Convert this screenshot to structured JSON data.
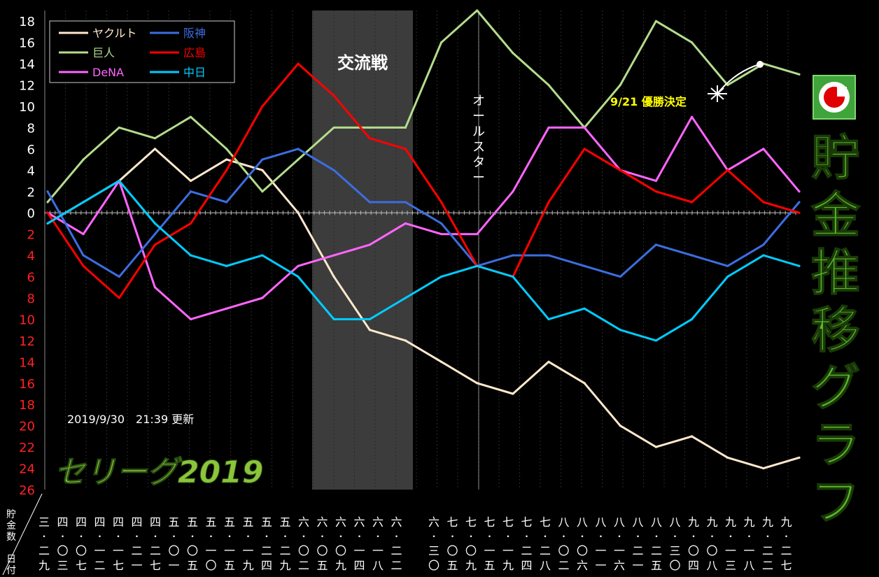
{
  "chart_data": {
    "type": "line",
    "title": "貯金推移グラフ",
    "badge": "セリーグ2019",
    "updated": "2019/9/30　21:39 更新",
    "axis_label": [
      "貯",
      "金",
      "数",
      "/",
      "日",
      "付"
    ],
    "ylim": [
      -26,
      19
    ],
    "yticks_pos": [
      "18",
      "16",
      "14",
      "12",
      "10",
      "8",
      "6",
      "4",
      "2",
      "0"
    ],
    "yticks_neg": [
      "2",
      "4",
      "6",
      "8",
      "10",
      "12",
      "14",
      "16",
      "18",
      "20",
      "22",
      "24",
      "26"
    ],
    "annotations": {
      "interleague": "交流戦",
      "allstar": [
        "オ",
        "ー",
        "ル",
        "ス",
        "タ",
        "ー"
      ],
      "clinch": "9/21 優勝決定"
    },
    "date_labels": [
      [
        "三",
        "二",
        "九"
      ],
      [
        "四",
        "〇",
        "三"
      ],
      [
        "四",
        "〇",
        "七"
      ],
      [
        "四",
        "一",
        "二"
      ],
      [
        "四",
        "一",
        "七"
      ],
      [
        "四",
        "二",
        "一"
      ],
      [
        "四",
        "二",
        "七"
      ],
      [
        "五",
        "〇",
        "一"
      ],
      [
        "五",
        "〇",
        "五"
      ],
      [
        "五",
        "一",
        "〇"
      ],
      [
        "五",
        "一",
        "五"
      ],
      [
        "五",
        "一",
        "九"
      ],
      [
        "五",
        "二",
        "四"
      ],
      [
        "五",
        "二",
        "九"
      ],
      [
        "六",
        "〇",
        "二"
      ],
      [
        "六",
        "〇",
        "五"
      ],
      [
        "六",
        "〇",
        "九"
      ],
      [
        "六",
        "一",
        "四"
      ],
      [
        "六",
        "一",
        "八"
      ],
      [
        "六",
        "二",
        "二"
      ],
      [
        "六",
        "三",
        "〇"
      ],
      [
        "七",
        "〇",
        "五"
      ],
      [
        "七",
        "〇",
        "九"
      ],
      [
        "七",
        "一",
        "五"
      ],
      [
        "七",
        "一",
        "九"
      ],
      [
        "七",
        "二",
        "四"
      ],
      [
        "七",
        "二",
        "八"
      ],
      [
        "八",
        "〇",
        "二"
      ],
      [
        "八",
        "〇",
        "六"
      ],
      [
        "八",
        "一",
        "一"
      ],
      [
        "八",
        "一",
        "六"
      ],
      [
        "八",
        "二",
        "一"
      ],
      [
        "八",
        "二",
        "五"
      ],
      [
        "八",
        "三",
        "〇"
      ],
      [
        "九",
        "〇",
        "四"
      ],
      [
        "九",
        "〇",
        "八"
      ],
      [
        "九",
        "一",
        "三"
      ],
      [
        "九",
        "一",
        "八"
      ],
      [
        "九",
        "二",
        "二"
      ],
      [
        "九",
        "二",
        "七"
      ]
    ],
    "series": [
      {
        "name": "ヤクルト",
        "color": "#ffe8cc",
        "values": [
          -1,
          1,
          3,
          6,
          3,
          5,
          4,
          0,
          -6,
          -11,
          -12,
          -14,
          -16,
          -17,
          -14,
          -16,
          -20,
          -22,
          -21,
          -23,
          -24,
          -23
        ]
      },
      {
        "name": "巨人",
        "color": "#b4dc8c",
        "values": [
          1,
          5,
          8,
          7,
          9,
          6,
          2,
          5,
          8,
          8,
          8,
          16,
          19,
          15,
          12,
          8,
          12,
          18,
          16,
          12,
          14,
          13
        ]
      },
      {
        "name": "DeNA",
        "color": "#ff66ff",
        "values": [
          0,
          -2,
          3,
          -7,
          -10,
          -9,
          -8,
          -5,
          -4,
          -3,
          -1,
          -2,
          -2,
          2,
          8,
          8,
          4,
          3,
          9,
          4,
          6,
          2
        ]
      },
      {
        "name": "阪神",
        "color": "#3c6ee0",
        "values": [
          2,
          -4,
          -6,
          -2,
          2,
          1,
          5,
          6,
          4,
          1,
          1,
          -1,
          -5,
          -4,
          -4,
          -5,
          -6,
          -3,
          -4,
          -5,
          -3,
          1
        ]
      },
      {
        "name": "広島",
        "color": "#ff0000",
        "values": [
          0,
          -5,
          -8,
          -3,
          -1,
          4,
          10,
          14,
          11,
          7,
          6,
          1,
          -5,
          -6,
          1,
          6,
          4,
          2,
          1,
          4,
          1,
          0
        ]
      },
      {
        "name": "中日",
        "color": "#00ccff",
        "values": [
          -1,
          1,
          3,
          -1,
          -4,
          -5,
          -4,
          -6,
          -10,
          -10,
          -8,
          -6,
          -5,
          -6,
          -10,
          -9,
          -11,
          -12,
          -10,
          -6,
          -4,
          -5
        ]
      }
    ]
  }
}
